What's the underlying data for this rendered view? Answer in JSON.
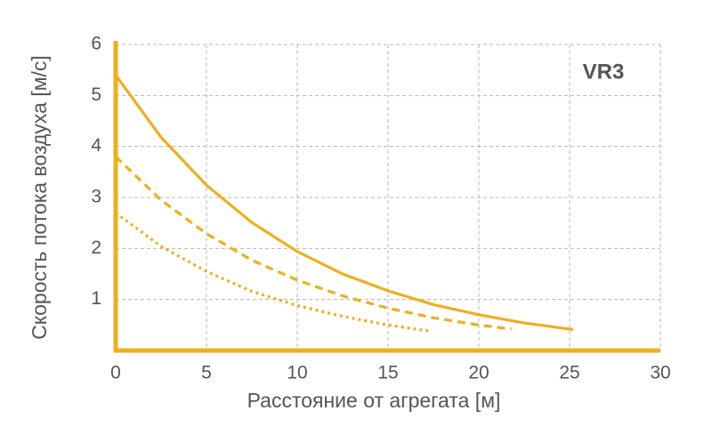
{
  "chart_data": {
    "type": "line",
    "annotation": "VR3",
    "x_label": "Расстояние от агрегата [м]",
    "y_label": "Скорость потока воздуха [м/с]",
    "xlim": [
      0,
      30
    ],
    "xticks": [
      0,
      5,
      10,
      15,
      20,
      25,
      30
    ],
    "ylim": [
      0,
      6
    ],
    "yticks": [
      1,
      2,
      3,
      4,
      5,
      6
    ],
    "grid": true,
    "axis_color": "#f0ae1c",
    "series": [
      {
        "color": "#f0ae1c",
        "dash": "solid",
        "x": [
          0,
          2.5,
          5,
          7.5,
          10,
          12.5,
          15,
          17.5,
          20,
          22.5,
          25.2
        ],
        "values": [
          5.4,
          4.18,
          3.24,
          2.51,
          1.94,
          1.5,
          1.17,
          0.9,
          0.7,
          0.54,
          0.41
        ]
      },
      {
        "color": "#f0ae1c",
        "dash": "dashed",
        "x": [
          0,
          2.5,
          5,
          7.5,
          10,
          12.5,
          15,
          17.5,
          20,
          21.8
        ],
        "values": [
          3.8,
          2.95,
          2.29,
          1.77,
          1.38,
          1.07,
          0.83,
          0.64,
          0.5,
          0.42
        ]
      },
      {
        "color": "#f0ae1c",
        "dash": "dotted",
        "x": [
          0,
          2.5,
          5,
          7.5,
          10,
          12.5,
          15,
          17.3
        ],
        "values": [
          2.7,
          2.04,
          1.55,
          1.16,
          0.88,
          0.67,
          0.5,
          0.38
        ]
      }
    ]
  }
}
